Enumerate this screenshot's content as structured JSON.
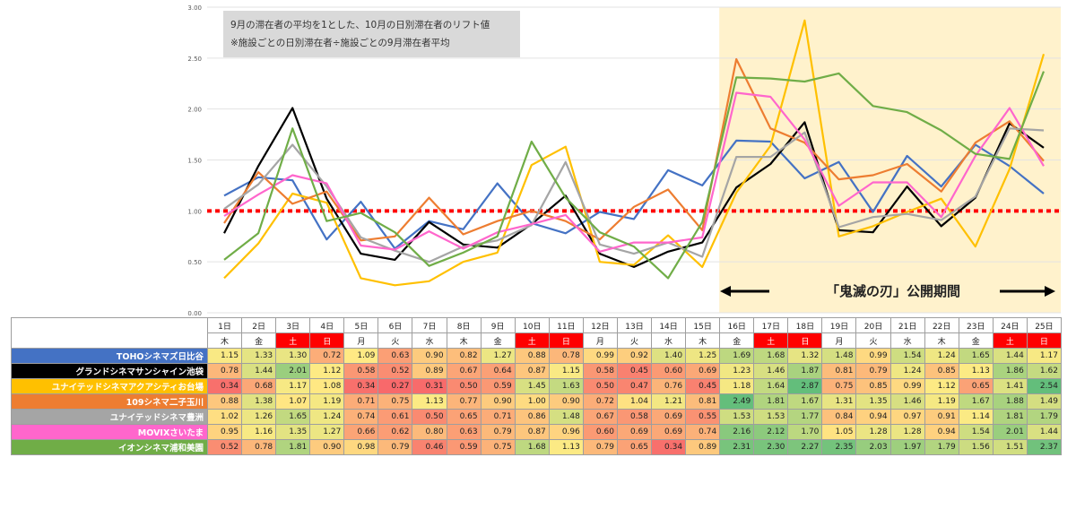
{
  "chart_data": {
    "type": "line",
    "y_ticks": [
      "0.00",
      "0.50",
      "1.00",
      "1.50",
      "2.00",
      "2.50",
      "3.00"
    ],
    "ylim": [
      0,
      3
    ],
    "annotation": [
      "9月の滞在者の平均を1とした、10月の日別滞在者のリフト値",
      "※施設ごとの日別滞在者÷施設ごとの9月滞在者平均"
    ],
    "period_label": "「鬼滅の刃」公開期間",
    "highlight_start": "16日",
    "highlight_end": "25日",
    "reference_y": 1.0,
    "reference_color": "#ff0000",
    "highlight_color": "#fff2cc",
    "categories": [
      "1日",
      "2日",
      "3日",
      "4日",
      "5日",
      "6日",
      "7日",
      "8日",
      "9日",
      "10日",
      "11日",
      "12日",
      "13日",
      "14日",
      "15日",
      "16日",
      "17日",
      "18日",
      "19日",
      "20日",
      "21日",
      "22日",
      "23日",
      "24日",
      "25日"
    ],
    "weekdays": [
      "木",
      "金",
      "土",
      "日",
      "月",
      "火",
      "水",
      "木",
      "金",
      "土",
      "日",
      "月",
      "火",
      "水",
      "木",
      "金",
      "土",
      "日",
      "月",
      "火",
      "水",
      "木",
      "金",
      "土",
      "日"
    ],
    "weekend": [
      false,
      false,
      true,
      true,
      false,
      false,
      false,
      false,
      false,
      true,
      true,
      false,
      false,
      false,
      false,
      false,
      true,
      true,
      false,
      false,
      false,
      false,
      false,
      true,
      true
    ],
    "series": [
      {
        "name": "TOHOシネマズ日比谷",
        "color": "#4472c4",
        "values": [
          1.15,
          1.33,
          1.3,
          0.72,
          1.09,
          0.63,
          0.9,
          0.82,
          1.27,
          0.88,
          0.78,
          0.99,
          0.92,
          1.4,
          1.25,
          1.69,
          1.68,
          1.32,
          1.48,
          0.99,
          1.54,
          1.24,
          1.65,
          1.44,
          1.17
        ]
      },
      {
        "name": "グランドシネマサンシャイン池袋",
        "color": "#000000",
        "values": [
          0.78,
          1.44,
          2.01,
          1.12,
          0.58,
          0.52,
          0.89,
          0.67,
          0.64,
          0.87,
          1.15,
          0.58,
          0.45,
          0.6,
          0.69,
          1.23,
          1.46,
          1.87,
          0.81,
          0.79,
          1.24,
          0.85,
          1.13,
          1.86,
          1.62
        ]
      },
      {
        "name": "ユナイテッドシネマアクアシティお台場",
        "color": "#ffc000",
        "values": [
          0.34,
          0.68,
          1.17,
          1.08,
          0.34,
          0.27,
          0.31,
          0.5,
          0.59,
          1.45,
          1.63,
          0.5,
          0.47,
          0.76,
          0.45,
          1.18,
          1.64,
          2.87,
          0.75,
          0.85,
          0.99,
          1.12,
          0.65,
          1.41,
          2.54
        ]
      },
      {
        "name": "109シネマ二子玉川",
        "color": "#ed7d31",
        "values": [
          0.88,
          1.38,
          1.07,
          1.19,
          0.71,
          0.75,
          1.13,
          0.77,
          0.9,
          1.0,
          0.9,
          0.72,
          1.04,
          1.21,
          0.81,
          2.49,
          1.81,
          1.67,
          1.31,
          1.35,
          1.46,
          1.19,
          1.67,
          1.88,
          1.49
        ]
      },
      {
        "name": "ユナイテッドシネマ豊洲",
        "color": "#a5a5a5",
        "values": [
          1.02,
          1.26,
          1.65,
          1.24,
          0.74,
          0.61,
          0.5,
          0.65,
          0.71,
          0.86,
          1.48,
          0.67,
          0.58,
          0.69,
          0.55,
          1.53,
          1.53,
          1.77,
          0.84,
          0.94,
          0.97,
          0.91,
          1.14,
          1.81,
          1.79
        ]
      },
      {
        "name": "MOVIXさいたま",
        "color": "#ff66cc",
        "values": [
          0.95,
          1.16,
          1.35,
          1.27,
          0.66,
          0.62,
          0.8,
          0.63,
          0.79,
          0.87,
          0.96,
          0.6,
          0.69,
          0.69,
          0.74,
          2.16,
          2.12,
          1.7,
          1.05,
          1.28,
          1.28,
          0.94,
          1.54,
          2.01,
          1.44
        ]
      },
      {
        "name": "イオンシネマ浦和美園",
        "color": "#70ad47",
        "values": [
          0.52,
          0.78,
          1.81,
          0.9,
          0.98,
          0.79,
          0.46,
          0.59,
          0.75,
          1.68,
          1.13,
          0.79,
          0.65,
          0.34,
          0.89,
          2.31,
          2.3,
          2.27,
          2.35,
          2.03,
          1.97,
          1.79,
          1.56,
          1.51,
          2.37
        ]
      }
    ]
  }
}
